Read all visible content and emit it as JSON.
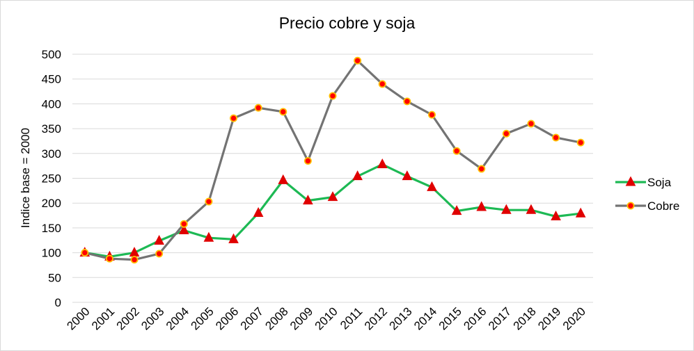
{
  "chart_data": {
    "type": "line",
    "title": "Precio cobre y soja",
    "xlabel": "",
    "ylabel": "Indice base = 2000",
    "ylim": [
      0,
      500
    ],
    "yticks": [
      0,
      50,
      100,
      150,
      200,
      250,
      300,
      350,
      400,
      450,
      500
    ],
    "grid": true,
    "legend": "right",
    "categories": [
      "2000",
      "2001",
      "2002",
      "2003",
      "2004",
      "2005",
      "2006",
      "2007",
      "2008",
      "2009",
      "2010",
      "2011",
      "2012",
      "2013",
      "2014",
      "2015",
      "2016",
      "2017",
      "2018",
      "2019",
      "2020"
    ],
    "series": [
      {
        "name": "Soja",
        "color": "#1db954",
        "marker": "triangle",
        "marker_color": "#e00000",
        "values": [
          100,
          92,
          100,
          124,
          145,
          130,
          127,
          180,
          246,
          205,
          212,
          254,
          278,
          254,
          232,
          184,
          192,
          186,
          186,
          173,
          179
        ]
      },
      {
        "name": "Cobre",
        "color": "#737373",
        "marker": "circle",
        "marker_color": "#ff0000",
        "marker_edge": "#ffc000",
        "values": [
          100,
          88,
          86,
          98,
          158,
          203,
          371,
          392,
          384,
          285,
          416,
          487,
          440,
          405,
          378,
          305,
          269,
          340,
          360,
          332,
          322
        ]
      }
    ]
  }
}
